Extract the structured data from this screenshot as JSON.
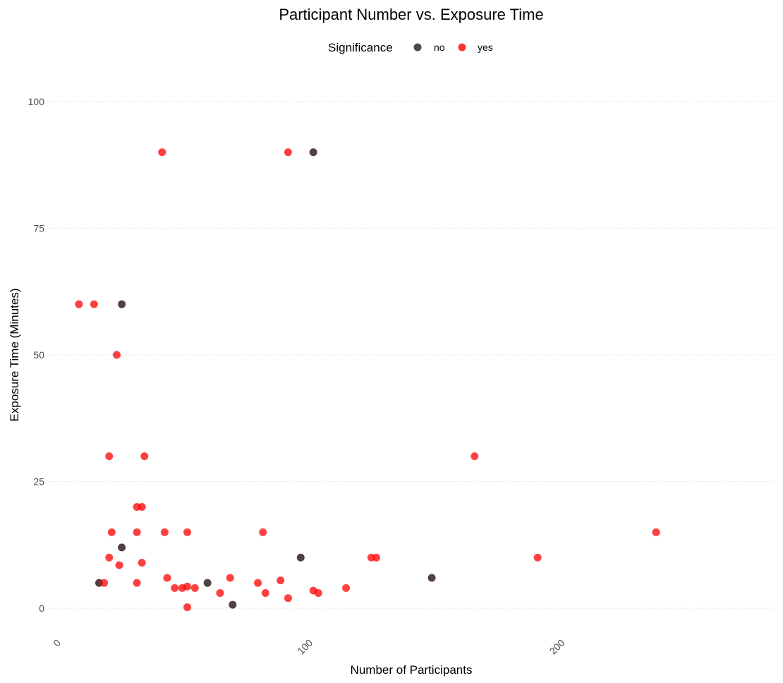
{
  "chart_data": {
    "type": "scatter",
    "title": "Participant Number vs. Exposure Time",
    "xlabel": "Number of Participants",
    "ylabel": "Exposure Time (Minutes)",
    "xlim": [
      -5,
      283
    ],
    "ylim": [
      -5,
      105
    ],
    "x_ticks": [
      0,
      100,
      200
    ],
    "y_ticks": [
      0,
      25,
      50,
      75,
      100
    ],
    "grid": "horizontal-dotted",
    "legend": {
      "title": "Significance",
      "position": "top-center",
      "entries": [
        {
          "label": "no",
          "color": "#4a4a4a"
        },
        {
          "label": "yes",
          "color": "#ff3333"
        }
      ]
    },
    "series": [
      {
        "name": "no",
        "color": "#1a0000",
        "points": [
          {
            "x": 100,
            "y": 90
          },
          {
            "x": 24,
            "y": 60
          },
          {
            "x": 15,
            "y": 5
          },
          {
            "x": 24,
            "y": 12
          },
          {
            "x": 58,
            "y": 5
          },
          {
            "x": 68,
            "y": 0.7
          },
          {
            "x": 95,
            "y": 10
          },
          {
            "x": 147,
            "y": 6
          }
        ]
      },
      {
        "name": "yes",
        "color": "#ff0000",
        "points": [
          {
            "x": 40,
            "y": 90
          },
          {
            "x": 90,
            "y": 90
          },
          {
            "x": 7,
            "y": 60
          },
          {
            "x": 13,
            "y": 60
          },
          {
            "x": 22,
            "y": 50
          },
          {
            "x": 19,
            "y": 30
          },
          {
            "x": 33,
            "y": 30
          },
          {
            "x": 164,
            "y": 30
          },
          {
            "x": 30,
            "y": 20
          },
          {
            "x": 32,
            "y": 20
          },
          {
            "x": 20,
            "y": 15
          },
          {
            "x": 30,
            "y": 15
          },
          {
            "x": 41,
            "y": 15
          },
          {
            "x": 50,
            "y": 15
          },
          {
            "x": 80,
            "y": 15
          },
          {
            "x": 236,
            "y": 15
          },
          {
            "x": 19,
            "y": 10
          },
          {
            "x": 123,
            "y": 10
          },
          {
            "x": 125,
            "y": 10
          },
          {
            "x": 189,
            "y": 10
          },
          {
            "x": 23,
            "y": 8.5
          },
          {
            "x": 32,
            "y": 9
          },
          {
            "x": 17,
            "y": 5
          },
          {
            "x": 30,
            "y": 5
          },
          {
            "x": 42,
            "y": 6
          },
          {
            "x": 45,
            "y": 4
          },
          {
            "x": 48,
            "y": 4
          },
          {
            "x": 50,
            "y": 4.3
          },
          {
            "x": 53,
            "y": 4
          },
          {
            "x": 50,
            "y": 0.2
          },
          {
            "x": 63,
            "y": 3
          },
          {
            "x": 67,
            "y": 6
          },
          {
            "x": 78,
            "y": 5
          },
          {
            "x": 81,
            "y": 3
          },
          {
            "x": 87,
            "y": 5.5
          },
          {
            "x": 90,
            "y": 2
          },
          {
            "x": 100,
            "y": 3.5
          },
          {
            "x": 102,
            "y": 3
          },
          {
            "x": 113,
            "y": 4
          }
        ]
      }
    ]
  }
}
